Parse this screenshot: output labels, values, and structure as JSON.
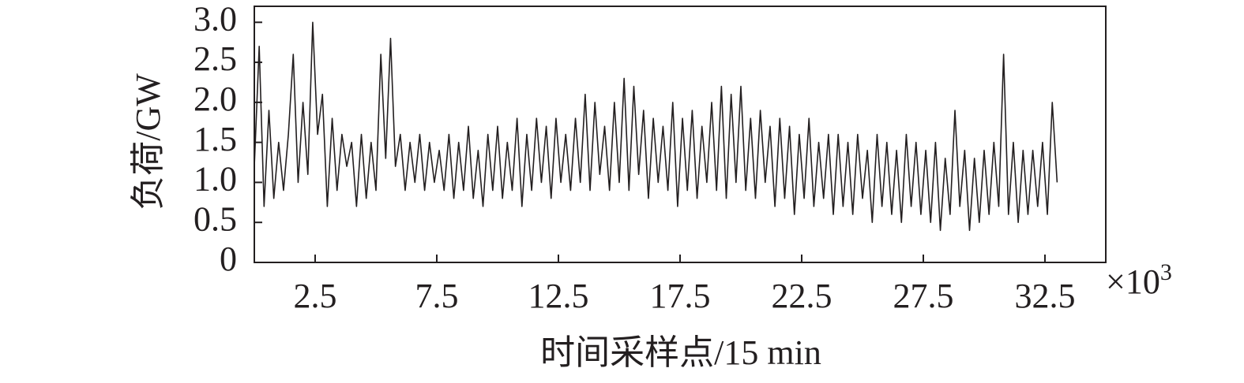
{
  "chart_data": {
    "type": "line",
    "xlabel": "时间采样点/15 min",
    "ylabel": "负荷/GW",
    "x_multiplier": "×10",
    "x_multiplier_exp": "3",
    "xlim": [
      0,
      35
    ],
    "xticks": [
      2.5,
      7.5,
      12.5,
      17.5,
      22.5,
      27.5,
      32.5
    ],
    "ylim": [
      0,
      3.2
    ],
    "yticks": [
      0,
      0.5,
      {
        "value": 1,
        "label": "1.0"
      },
      1.5,
      {
        "value": 2,
        "label": "2.0"
      },
      2.5,
      {
        "value": 3,
        "label": "3.0"
      }
    ],
    "grid": false,
    "x": [
      0,
      0.2,
      0.4,
      0.6,
      0.8,
      1,
      1.2,
      1.4,
      1.6,
      1.8,
      2,
      2.2,
      2.4,
      2.6,
      2.8,
      3,
      3.2,
      3.4,
      3.6,
      3.8,
      4,
      4.2,
      4.4,
      4.6,
      4.8,
      5,
      5.2,
      5.4,
      5.6,
      5.8,
      6,
      6.2,
      6.4,
      6.6,
      6.8,
      7,
      7.2,
      7.4,
      7.6,
      7.8,
      8,
      8.2,
      8.4,
      8.6,
      8.8,
      9,
      9.2,
      9.4,
      9.6,
      9.8,
      10,
      10.2,
      10.4,
      10.6,
      10.8,
      11,
      11.2,
      11.4,
      11.6,
      11.8,
      12,
      12.2,
      12.4,
      12.6,
      12.8,
      13,
      13.2,
      13.4,
      13.6,
      13.8,
      14,
      14.2,
      14.4,
      14.6,
      14.8,
      15,
      15.2,
      15.4,
      15.6,
      15.8,
      16,
      16.2,
      16.4,
      16.6,
      16.8,
      17,
      17.2,
      17.4,
      17.6,
      17.8,
      18,
      18.2,
      18.4,
      18.6,
      18.8,
      19,
      19.2,
      19.4,
      19.6,
      19.8,
      20,
      20.2,
      20.4,
      20.6,
      20.8,
      21,
      21.2,
      21.4,
      21.6,
      21.8,
      22,
      22.2,
      22.4,
      22.6,
      22.8,
      23,
      23.2,
      23.4,
      23.6,
      23.8,
      24,
      24.2,
      24.4,
      24.6,
      24.8,
      25,
      25.2,
      25.4,
      25.6,
      25.8,
      26,
      26.2,
      26.4,
      26.6,
      26.8,
      27,
      27.2,
      27.4,
      27.6,
      27.8,
      28,
      28.2,
      28.4,
      28.6,
      28.8,
      29,
      29.2,
      29.4,
      29.6,
      29.8,
      30,
      30.2,
      30.4,
      30.6,
      30.8,
      31,
      31.2,
      31.4,
      31.6,
      31.8,
      32,
      32.2,
      32.4,
      32.6,
      32.8,
      33
    ],
    "series": [
      {
        "color": "#231f20",
        "values": [
          1.2,
          2.7,
          0.7,
          1.9,
          0.8,
          1.5,
          0.9,
          1.6,
          2.6,
          1.0,
          2.0,
          1.1,
          3.0,
          1.6,
          2.1,
          0.7,
          1.8,
          0.9,
          1.6,
          1.2,
          1.5,
          0.7,
          1.6,
          0.8,
          1.5,
          0.9,
          2.6,
          1.3,
          2.8,
          1.2,
          1.6,
          0.9,
          1.5,
          1.0,
          1.6,
          0.9,
          1.5,
          1.0,
          1.4,
          0.9,
          1.6,
          0.8,
          1.5,
          0.9,
          1.7,
          0.8,
          1.4,
          0.7,
          1.6,
          0.9,
          1.7,
          0.8,
          1.5,
          0.9,
          1.8,
          0.7,
          1.6,
          0.9,
          1.8,
          1.0,
          1.7,
          0.8,
          1.8,
          1.0,
          1.6,
          0.9,
          1.8,
          1.0,
          2.1,
          0.9,
          2.0,
          1.1,
          1.7,
          0.9,
          2.0,
          1.0,
          2.3,
          0.9,
          2.2,
          1.1,
          1.9,
          0.8,
          1.8,
          1.0,
          1.7,
          0.9,
          2.0,
          0.7,
          1.8,
          0.9,
          1.9,
          0.8,
          1.7,
          1.0,
          2.0,
          0.9,
          2.2,
          0.8,
          2.1,
          1.0,
          2.2,
          0.9,
          1.8,
          0.8,
          1.9,
          1.0,
          1.7,
          0.7,
          1.8,
          0.8,
          1.7,
          0.6,
          1.6,
          0.8,
          1.8,
          0.7,
          1.5,
          0.8,
          1.6,
          0.6,
          1.6,
          0.7,
          1.5,
          0.6,
          1.6,
          0.8,
          1.4,
          0.5,
          1.6,
          0.7,
          1.5,
          0.6,
          1.4,
          0.5,
          1.6,
          0.7,
          1.5,
          0.6,
          1.4,
          0.5,
          1.5,
          0.4,
          1.3,
          0.6,
          1.9,
          0.7,
          1.4,
          0.4,
          1.3,
          0.5,
          1.4,
          0.6,
          1.5,
          0.7,
          2.6,
          0.6,
          1.5,
          0.5,
          1.4,
          0.6,
          1.4,
          0.7,
          1.5,
          0.6,
          2.0,
          1.0
        ]
      }
    ]
  }
}
